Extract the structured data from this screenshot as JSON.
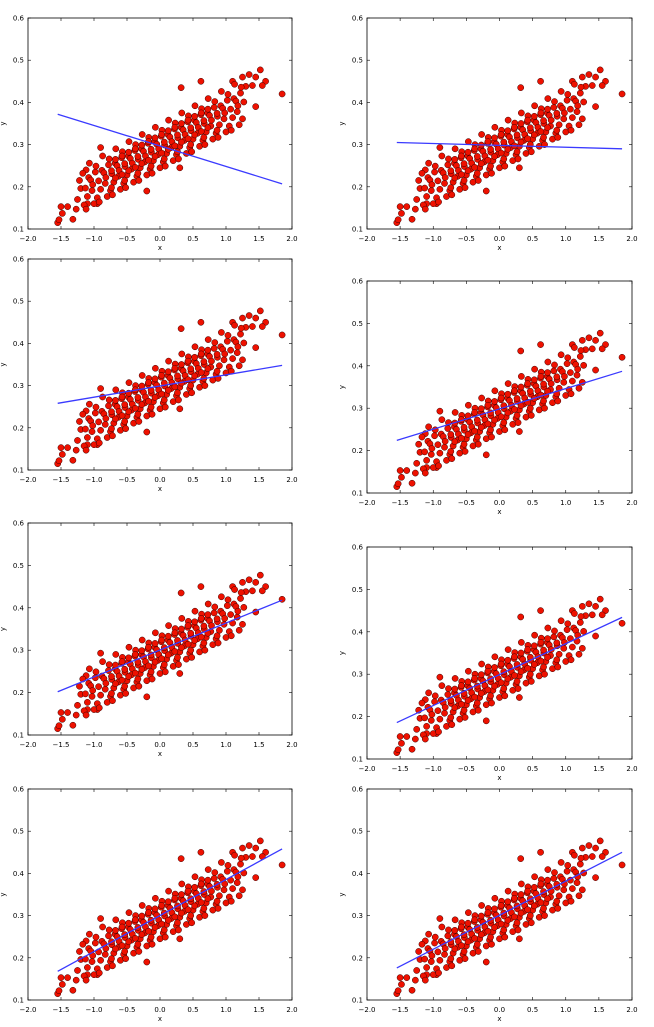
{
  "chart_data": [
    {
      "type": "scatter",
      "title": "",
      "xlabel": "x",
      "ylabel": "y",
      "xlim": [
        -2.0,
        2.0
      ],
      "ylim": [
        0.1,
        0.6
      ],
      "fit_line": {
        "x": [
          -1.55,
          1.85
        ],
        "y": [
          0.372,
          0.207
        ]
      }
    },
    {
      "type": "scatter",
      "title": "",
      "xlabel": "x",
      "ylabel": "y",
      "xlim": [
        -2.0,
        2.0
      ],
      "ylim": [
        0.1,
        0.6
      ],
      "fit_line": {
        "x": [
          -1.55,
          1.85
        ],
        "y": [
          0.305,
          0.29
        ]
      }
    },
    {
      "type": "scatter",
      "title": "",
      "xlabel": "x",
      "ylabel": "y",
      "xlim": [
        -2.0,
        2.0
      ],
      "ylim": [
        0.1,
        0.6
      ],
      "fit_line": {
        "x": [
          -1.55,
          1.85
        ],
        "y": [
          0.258,
          0.348
        ]
      }
    },
    {
      "type": "scatter",
      "title": "",
      "xlabel": "x",
      "ylabel": "y",
      "xlim": [
        -2.0,
        2.0
      ],
      "ylim": [
        0.1,
        0.6
      ],
      "fit_line": {
        "x": [
          -1.55,
          1.85
        ],
        "y": [
          0.224,
          0.387
        ]
      }
    },
    {
      "type": "scatter",
      "title": "",
      "xlabel": "x",
      "ylabel": "y",
      "xlim": [
        -2.0,
        2.0
      ],
      "ylim": [
        0.1,
        0.6
      ],
      "fit_line": {
        "x": [
          -1.55,
          1.85
        ],
        "y": [
          0.202,
          0.418
        ]
      }
    },
    {
      "type": "scatter",
      "title": "",
      "xlabel": "x",
      "ylabel": "y",
      "xlim": [
        -2.0,
        2.0
      ],
      "ylim": [
        0.1,
        0.6
      ],
      "fit_line": {
        "x": [
          -1.55,
          1.85
        ],
        "y": [
          0.186,
          0.434
        ]
      }
    },
    {
      "type": "scatter",
      "title": "",
      "xlabel": "x",
      "ylabel": "y",
      "xlim": [
        -2.0,
        2.0
      ],
      "ylim": [
        0.1,
        0.6
      ],
      "fit_line": {
        "x": [
          -1.55,
          1.85
        ],
        "y": [
          0.168,
          0.458
        ]
      }
    },
    {
      "type": "scatter",
      "title": "",
      "xlabel": "x",
      "ylabel": "y",
      "xlim": [
        -2.0,
        2.0
      ],
      "ylim": [
        0.1,
        0.6
      ],
      "fit_line": {
        "x": [
          -1.55,
          1.85
        ],
        "y": [
          0.176,
          0.45
        ]
      }
    }
  ],
  "shared": {
    "x_ticks": [
      "−2.0",
      "−1.5",
      "−1.0",
      "−0.5",
      "0.0",
      "0.5",
      "1.0",
      "1.5",
      "2.0"
    ],
    "x_tick_values": [
      -2.0,
      -1.5,
      -1.0,
      -0.5,
      0.0,
      0.5,
      1.0,
      1.5,
      2.0
    ],
    "y_ticks": [
      "0.1",
      "0.2",
      "0.3",
      "0.4",
      "0.5",
      "0.6"
    ],
    "y_tick_values": [
      0.1,
      0.2,
      0.3,
      0.4,
      0.5,
      0.6
    ],
    "colors": {
      "points": "#ee1100",
      "point_edge": "#3a0000",
      "line": "#3a3aff"
    },
    "points": [
      [
        -1.55,
        0.115
      ],
      [
        -1.53,
        0.122
      ],
      [
        -1.5,
        0.153
      ],
      [
        -1.48,
        0.137
      ],
      [
        -1.4,
        0.153
      ],
      [
        -1.32,
        0.123
      ],
      [
        -1.27,
        0.147
      ],
      [
        -1.25,
        0.17
      ],
      [
        -1.22,
        0.215
      ],
      [
        -1.2,
        0.196
      ],
      [
        -1.1,
        0.16
      ],
      [
        -1.12,
        0.24
      ],
      [
        -0.9,
        0.293
      ],
      [
        -0.95,
        0.16
      ],
      [
        1.85,
        0.42
      ],
      [
        1.52,
        0.477
      ],
      [
        1.6,
        0.45
      ],
      [
        1.35,
        0.466
      ],
      [
        1.3,
        0.438
      ],
      [
        1.45,
        0.39
      ],
      [
        1.25,
        0.46
      ],
      [
        0.32,
        0.435
      ],
      [
        0.62,
        0.45
      ],
      [
        0.3,
        0.245
      ],
      [
        -0.2,
        0.19
      ],
      [
        1.1,
        0.45
      ],
      [
        1.4,
        0.44
      ],
      [
        1.55,
        0.44
      ],
      [
        1.45,
        0.46
      ],
      [
        -1.15,
        0.157
      ],
      [
        -1.13,
        0.197
      ],
      [
        -1.17,
        0.232
      ],
      [
        -1.1,
        0.177
      ],
      [
        -1.08,
        0.222
      ],
      [
        -1.12,
        0.147
      ],
      [
        -1.05,
        0.216
      ],
      [
        -1.03,
        0.191
      ],
      [
        -1.07,
        0.256
      ],
      [
        -1.0,
        0.16
      ],
      [
        -0.98,
        0.235
      ],
      [
        -1.02,
        0.205
      ],
      [
        -0.95,
        0.174
      ],
      [
        -0.93,
        0.214
      ],
      [
        -0.97,
        0.249
      ],
      [
        -0.9,
        0.194
      ],
      [
        -0.88,
        0.239
      ],
      [
        -0.92,
        0.164
      ],
      [
        -0.85,
        0.233
      ],
      [
        -0.83,
        0.208
      ],
      [
        -0.87,
        0.273
      ],
      [
        -0.8,
        0.177
      ],
      [
        -0.78,
        0.252
      ],
      [
        -0.82,
        0.222
      ],
      [
        -0.75,
        0.191
      ],
      [
        -0.73,
        0.231
      ],
      [
        -0.77,
        0.266
      ],
      [
        -0.7,
        0.211
      ],
      [
        -0.68,
        0.256
      ],
      [
        -0.72,
        0.181
      ],
      [
        -0.65,
        0.25
      ],
      [
        -0.63,
        0.225
      ],
      [
        -0.67,
        0.29
      ],
      [
        -0.6,
        0.194
      ],
      [
        -0.58,
        0.269
      ],
      [
        -0.62,
        0.239
      ],
      [
        -0.55,
        0.208
      ],
      [
        -0.53,
        0.248
      ],
      [
        -0.57,
        0.283
      ],
      [
        -0.5,
        0.228
      ],
      [
        -0.48,
        0.273
      ],
      [
        -0.52,
        0.198
      ],
      [
        -0.45,
        0.267
      ],
      [
        -0.43,
        0.242
      ],
      [
        -0.47,
        0.307
      ],
      [
        -0.4,
        0.211
      ],
      [
        -0.38,
        0.286
      ],
      [
        -0.42,
        0.256
      ],
      [
        -0.35,
        0.225
      ],
      [
        -0.33,
        0.265
      ],
      [
        -0.37,
        0.3
      ],
      [
        -0.3,
        0.245
      ],
      [
        -0.28,
        0.29
      ],
      [
        -0.32,
        0.215
      ],
      [
        -0.25,
        0.284
      ],
      [
        -0.23,
        0.259
      ],
      [
        -0.27,
        0.324
      ],
      [
        -0.2,
        0.228
      ],
      [
        -0.18,
        0.303
      ],
      [
        -0.22,
        0.273
      ],
      [
        -0.15,
        0.242
      ],
      [
        -0.13,
        0.282
      ],
      [
        -0.17,
        0.317
      ],
      [
        -0.1,
        0.262
      ],
      [
        -0.08,
        0.307
      ],
      [
        -0.12,
        0.232
      ],
      [
        -0.05,
        0.301
      ],
      [
        -0.03,
        0.276
      ],
      [
        -0.07,
        0.341
      ],
      [
        0.0,
        0.245
      ],
      [
        0.02,
        0.32
      ],
      [
        -0.02,
        0.29
      ],
      [
        0.05,
        0.259
      ],
      [
        0.07,
        0.299
      ],
      [
        0.03,
        0.334
      ],
      [
        0.1,
        0.279
      ],
      [
        0.12,
        0.324
      ],
      [
        0.08,
        0.249
      ],
      [
        0.15,
        0.318
      ],
      [
        0.17,
        0.293
      ],
      [
        0.13,
        0.358
      ],
      [
        0.2,
        0.262
      ],
      [
        0.22,
        0.337
      ],
      [
        0.18,
        0.307
      ],
      [
        0.25,
        0.276
      ],
      [
        0.27,
        0.316
      ],
      [
        0.23,
        0.351
      ],
      [
        0.3,
        0.296
      ],
      [
        0.32,
        0.341
      ],
      [
        0.28,
        0.266
      ],
      [
        0.35,
        0.335
      ],
      [
        0.37,
        0.31
      ],
      [
        0.33,
        0.375
      ],
      [
        0.4,
        0.279
      ],
      [
        0.42,
        0.354
      ],
      [
        0.38,
        0.324
      ],
      [
        0.45,
        0.293
      ],
      [
        0.47,
        0.333
      ],
      [
        0.43,
        0.368
      ],
      [
        0.5,
        0.313
      ],
      [
        0.52,
        0.358
      ],
      [
        0.48,
        0.283
      ],
      [
        0.55,
        0.352
      ],
      [
        0.57,
        0.327
      ],
      [
        0.53,
        0.392
      ],
      [
        0.6,
        0.296
      ],
      [
        0.62,
        0.371
      ],
      [
        0.58,
        0.341
      ],
      [
        0.65,
        0.31
      ],
      [
        0.67,
        0.35
      ],
      [
        0.63,
        0.385
      ],
      [
        0.7,
        0.33
      ],
      [
        0.72,
        0.375
      ],
      [
        0.68,
        0.3
      ],
      [
        0.75,
        0.369
      ],
      [
        0.77,
        0.344
      ],
      [
        0.73,
        0.409
      ],
      [
        0.8,
        0.313
      ],
      [
        0.82,
        0.388
      ],
      [
        0.78,
        0.358
      ],
      [
        0.85,
        0.327
      ],
      [
        0.87,
        0.367
      ],
      [
        0.83,
        0.402
      ],
      [
        0.9,
        0.347
      ],
      [
        0.92,
        0.392
      ],
      [
        0.88,
        0.317
      ],
      [
        0.95,
        0.386
      ],
      [
        0.97,
        0.361
      ],
      [
        0.93,
        0.426
      ],
      [
        1.0,
        0.33
      ],
      [
        1.02,
        0.405
      ],
      [
        0.98,
        0.375
      ],
      [
        1.05,
        0.344
      ],
      [
        1.07,
        0.384
      ],
      [
        1.03,
        0.419
      ],
      [
        1.1,
        0.364
      ],
      [
        1.12,
        0.409
      ],
      [
        1.08,
        0.334
      ],
      [
        1.15,
        0.403
      ],
      [
        1.17,
        0.378
      ],
      [
        1.13,
        0.443
      ],
      [
        1.2,
        0.347
      ],
      [
        1.22,
        0.422
      ],
      [
        1.18,
        0.392
      ],
      [
        1.25,
        0.361
      ],
      [
        1.27,
        0.401
      ],
      [
        1.23,
        0.436
      ],
      [
        -0.675,
        0.221
      ],
      [
        -0.675,
        0.265
      ],
      [
        -0.575,
        0.229
      ],
      [
        -0.575,
        0.273
      ],
      [
        -0.475,
        0.238
      ],
      [
        -0.475,
        0.282
      ],
      [
        -0.375,
        0.246
      ],
      [
        -0.375,
        0.29
      ],
      [
        -0.275,
        0.255
      ],
      [
        -0.275,
        0.299
      ],
      [
        -0.175,
        0.263
      ],
      [
        -0.175,
        0.307
      ],
      [
        -0.075,
        0.272
      ],
      [
        -0.075,
        0.316
      ],
      [
        0.025,
        0.28
      ],
      [
        0.025,
        0.324
      ],
      [
        0.125,
        0.289
      ],
      [
        0.125,
        0.333
      ],
      [
        0.225,
        0.297
      ],
      [
        0.225,
        0.341
      ],
      [
        0.325,
        0.306
      ],
      [
        0.325,
        0.35
      ],
      [
        0.425,
        0.314
      ],
      [
        0.425,
        0.358
      ],
      [
        0.525,
        0.323
      ],
      [
        0.525,
        0.367
      ],
      [
        0.625,
        0.331
      ],
      [
        0.625,
        0.375
      ],
      [
        0.725,
        0.34
      ],
      [
        0.725,
        0.384
      ],
      [
        -0.735,
        0.198
      ],
      [
        -0.735,
        0.238
      ],
      [
        -0.535,
        0.215
      ],
      [
        -0.535,
        0.255
      ],
      [
        -0.335,
        0.232
      ],
      [
        -0.335,
        0.272
      ],
      [
        -0.135,
        0.249
      ],
      [
        -0.135,
        0.289
      ],
      [
        0.065,
        0.266
      ],
      [
        0.065,
        0.306
      ],
      [
        0.265,
        0.283
      ],
      [
        0.265,
        0.323
      ],
      [
        0.465,
        0.3
      ],
      [
        0.465,
        0.34
      ],
      [
        0.665,
        0.317
      ],
      [
        0.665,
        0.357
      ],
      [
        0.865,
        0.334
      ],
      [
        0.865,
        0.374
      ]
    ]
  }
}
